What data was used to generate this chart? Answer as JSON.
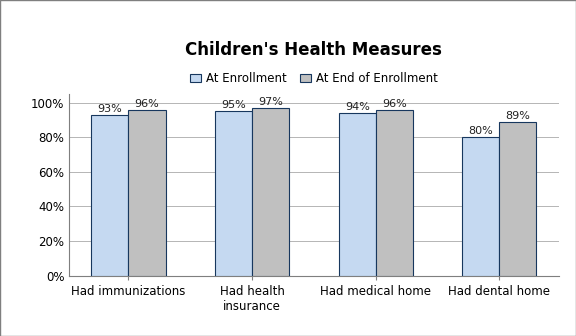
{
  "title": "Children's Health Measures",
  "categories": [
    "Had immunizations",
    "Had health\ninsurance",
    "Had medical home",
    "Had dental home"
  ],
  "series": [
    {
      "label": "At Enrollment",
      "values": [
        93,
        95,
        94,
        80
      ],
      "color": "#c5d9f1",
      "edgecolor": "#17375e"
    },
    {
      "label": "At End of Enrollment",
      "values": [
        96,
        97,
        96,
        89
      ],
      "color": "#c0c0c0",
      "edgecolor": "#17375e"
    }
  ],
  "ylim": [
    0,
    105
  ],
  "yticks": [
    0,
    20,
    40,
    60,
    80,
    100
  ],
  "ytick_labels": [
    "0%",
    "20%",
    "40%",
    "60%",
    "80%",
    "100%"
  ],
  "bar_width": 0.3,
  "title_fontsize": 12,
  "tick_fontsize": 8.5,
  "legend_fontsize": 8.5,
  "value_fontsize": 8,
  "background_color": "#ffffff",
  "grid_color": "#aaaaaa",
  "value_color": "#222222",
  "border_color": "#7f7f7f"
}
